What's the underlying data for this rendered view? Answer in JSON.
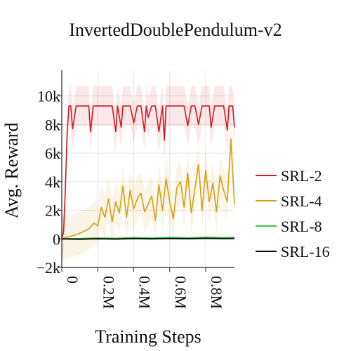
{
  "chart_data": {
    "type": "line",
    "title": "InvertedDoublePendulum-v2",
    "xlabel": "Training Steps",
    "ylabel": "Avg. Reward",
    "xlim": [
      0,
      960000
    ],
    "ylim": [
      -2000,
      11800
    ],
    "x_ticks": [
      0,
      200000,
      400000,
      600000,
      800000
    ],
    "x_tick_labels": [
      "0",
      "0.2M",
      "0.4M",
      "0.6M",
      "0.8M"
    ],
    "y_ticks": [
      -2000,
      0,
      2000,
      4000,
      6000,
      8000,
      10000
    ],
    "y_tick_labels": [
      "−2k",
      "0",
      "2k",
      "4k",
      "6k",
      "8k",
      "10k"
    ],
    "grid": true,
    "legend_position": "right",
    "series": [
      {
        "name": "SRL-2",
        "color": "#d7191c",
        "x": [
          0,
          10000,
          20000,
          30000,
          40000,
          50000,
          60000,
          80000,
          100000,
          130000,
          150000,
          160000,
          175000,
          190000,
          210000,
          240000,
          280000,
          300000,
          310000,
          330000,
          340000,
          350000,
          360000,
          380000,
          400000,
          420000,
          440000,
          460000,
          470000,
          480000,
          500000,
          520000,
          540000,
          560000,
          570000,
          580000,
          600000,
          620000,
          640000,
          660000,
          680000,
          700000,
          720000,
          740000,
          760000,
          780000,
          800000,
          820000,
          830000,
          850000,
          870000,
          880000,
          900000,
          920000,
          930000,
          950000,
          960000
        ],
        "y": [
          0,
          500,
          3500,
          7500,
          9300,
          9300,
          7700,
          9300,
          9300,
          9300,
          9300,
          7500,
          9300,
          9300,
          9300,
          9300,
          9300,
          7500,
          9300,
          7800,
          9300,
          9300,
          9300,
          9300,
          8100,
          9300,
          9300,
          7500,
          9300,
          8500,
          9300,
          9300,
          7500,
          9300,
          6900,
          9300,
          9300,
          9300,
          9300,
          9300,
          9300,
          7900,
          9300,
          9300,
          8000,
          9300,
          9300,
          9300,
          7800,
          9300,
          9300,
          9300,
          9300,
          7600,
          9300,
          9300,
          7800
        ]
      },
      {
        "name": "SRL-4",
        "color": "#d4a017",
        "x": [
          0,
          40000,
          80000,
          120000,
          150000,
          180000,
          200000,
          220000,
          240000,
          260000,
          280000,
          300000,
          320000,
          340000,
          360000,
          380000,
          400000,
          420000,
          440000,
          460000,
          480000,
          500000,
          520000,
          540000,
          560000,
          580000,
          600000,
          620000,
          640000,
          660000,
          680000,
          700000,
          720000,
          740000,
          760000,
          780000,
          800000,
          820000,
          840000,
          860000,
          880000,
          900000,
          920000,
          940000,
          960000
        ],
        "y": [
          0,
          150,
          300,
          500,
          700,
          1100,
          900,
          2200,
          1500,
          2800,
          1200,
          2600,
          1800,
          3700,
          1500,
          3400,
          2100,
          2800,
          3200,
          1900,
          2400,
          3000,
          1300,
          3800,
          2000,
          4200,
          2600,
          1400,
          3600,
          4000,
          2200,
          4600,
          1800,
          3500,
          5200,
          2000,
          4800,
          2600,
          3900,
          1900,
          4400,
          3400,
          2600,
          7000,
          2400
        ]
      },
      {
        "name": "SRL-8",
        "color": "#2ecc40",
        "x": [
          0,
          100000,
          200000,
          300000,
          400000,
          500000,
          600000,
          700000,
          800000,
          900000,
          960000
        ],
        "y": [
          0,
          20,
          60,
          40,
          80,
          60,
          90,
          70,
          100,
          80,
          100
        ]
      },
      {
        "name": "SRL-16",
        "color": "#111111",
        "x": [
          0,
          100000,
          200000,
          300000,
          400000,
          500000,
          600000,
          700000,
          800000,
          900000,
          960000
        ],
        "y": [
          0,
          -20,
          10,
          -10,
          20,
          0,
          30,
          10,
          40,
          20,
          30
        ]
      }
    ]
  }
}
